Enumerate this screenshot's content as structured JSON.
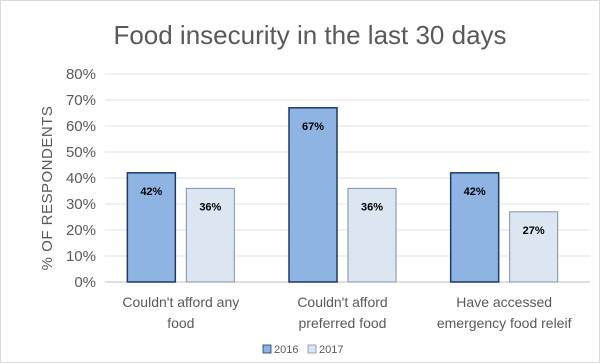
{
  "chart_data": {
    "type": "bar",
    "title": "Food insecurity in the last 30 days",
    "ylabel": "% OF RESPONDENTS",
    "xlabel": "",
    "ylim": [
      0,
      80
    ],
    "yticks": [
      "0%",
      "10%",
      "20%",
      "30%",
      "40%",
      "50%",
      "60%",
      "70%",
      "80%"
    ],
    "categories": [
      [
        "Couldn't afford any",
        "food"
      ],
      [
        "Couldn't afford",
        "preferred food"
      ],
      [
        "Have accessed",
        "emergency food releif"
      ]
    ],
    "series": [
      {
        "name": "2016",
        "values": [
          42,
          67,
          42
        ],
        "labels": [
          "42%",
          "67%",
          "42%"
        ],
        "color": "#8eb4e3",
        "stroke": "#1f3864"
      },
      {
        "name": "2017",
        "values": [
          36,
          36,
          27
        ],
        "labels": [
          "36%",
          "36%",
          "27%"
        ],
        "color": "#dce6f2",
        "stroke": "#7f8fa6"
      }
    ],
    "grid": true,
    "legend_position": "bottom"
  }
}
